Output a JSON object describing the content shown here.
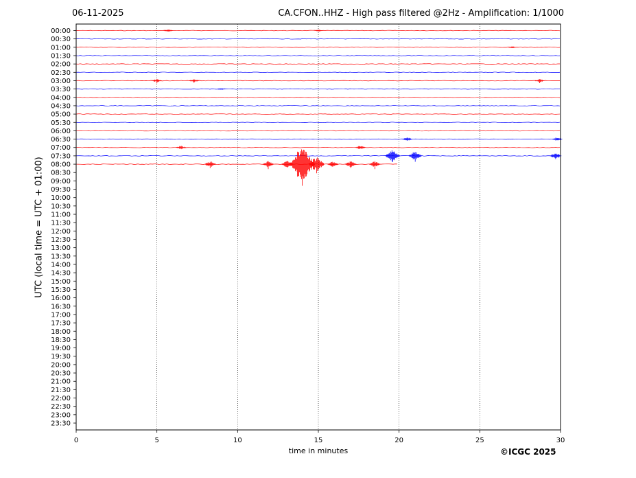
{
  "header": {
    "date": "06-11-2025",
    "title": "CA.CFON..HHZ - High pass filtered @2Hz - Amplification: 1/1000"
  },
  "footer": {
    "copyright": "©ICGC 2025"
  },
  "colors": {
    "trace_a": "#ff0000",
    "trace_b": "#0000ff",
    "grid": "#000000"
  },
  "chart_data": {
    "type": "line",
    "subtype": "helicorder",
    "xlabel": "time in minutes",
    "ylabel": "UTC (local time = UTC + 01:00)",
    "xlim": [
      0,
      30
    ],
    "xticks": [
      0,
      5,
      10,
      15,
      20,
      25,
      30
    ],
    "grid": "vertical dotted lines at 5-minute ticks",
    "row_labels": [
      "00:00",
      "00:30",
      "01:00",
      "01:30",
      "02:00",
      "02:30",
      "03:00",
      "03:30",
      "04:00",
      "04:30",
      "05:00",
      "05:30",
      "06:00",
      "06:30",
      "07:00",
      "07:30",
      "08:00",
      "08:30",
      "09:00",
      "09:30",
      "10:00",
      "10:30",
      "11:00",
      "11:30",
      "12:00",
      "12:30",
      "13:00",
      "13:30",
      "14:00",
      "14:30",
      "15:00",
      "15:30",
      "16:00",
      "16:30",
      "17:00",
      "17:30",
      "18:00",
      "18:30",
      "19:00",
      "19:30",
      "20:00",
      "20:30",
      "21:00",
      "21:30",
      "22:00",
      "22:30",
      "23:00",
      "23:30"
    ],
    "trace_end_row": "08:00",
    "trace_end_minute": 20,
    "events": [
      {
        "row": "00:00",
        "minute": 5.7,
        "amplitude": 0.4
      },
      {
        "row": "00:00",
        "minute": 15.0,
        "amplitude": 0.3
      },
      {
        "row": "01:00",
        "minute": 27.0,
        "amplitude": 0.3
      },
      {
        "row": "03:00",
        "minute": 5.0,
        "amplitude": 0.5
      },
      {
        "row": "03:00",
        "minute": 7.3,
        "amplitude": 0.5
      },
      {
        "row": "03:00",
        "minute": 28.7,
        "amplitude": 0.5
      },
      {
        "row": "03:30",
        "minute": 9.0,
        "amplitude": 0.3
      },
      {
        "row": "06:30",
        "minute": 20.5,
        "amplitude": 0.6
      },
      {
        "row": "06:30",
        "minute": 29.8,
        "amplitude": 0.6
      },
      {
        "row": "07:00",
        "minute": 6.5,
        "amplitude": 0.6
      },
      {
        "row": "07:00",
        "minute": 17.6,
        "amplitude": 0.6
      },
      {
        "row": "07:30",
        "minute": 19.6,
        "amplitude": 2.0
      },
      {
        "row": "07:30",
        "minute": 21.0,
        "amplitude": 1.5
      },
      {
        "row": "07:30",
        "minute": 29.7,
        "amplitude": 1.0
      },
      {
        "row": "08:00",
        "minute": 8.3,
        "amplitude": 1.0
      },
      {
        "row": "08:00",
        "minute": 11.9,
        "amplitude": 1.0
      },
      {
        "row": "08:00",
        "minute": 13.1,
        "amplitude": 1.2
      },
      {
        "row": "08:00",
        "minute": 14.0,
        "amplitude": 6.0
      },
      {
        "row": "08:00",
        "minute": 14.9,
        "amplitude": 2.5
      },
      {
        "row": "08:00",
        "minute": 15.9,
        "amplitude": 1.0
      },
      {
        "row": "08:00",
        "minute": 17.0,
        "amplitude": 1.0
      },
      {
        "row": "08:00",
        "minute": 18.5,
        "amplitude": 1.0
      }
    ]
  }
}
